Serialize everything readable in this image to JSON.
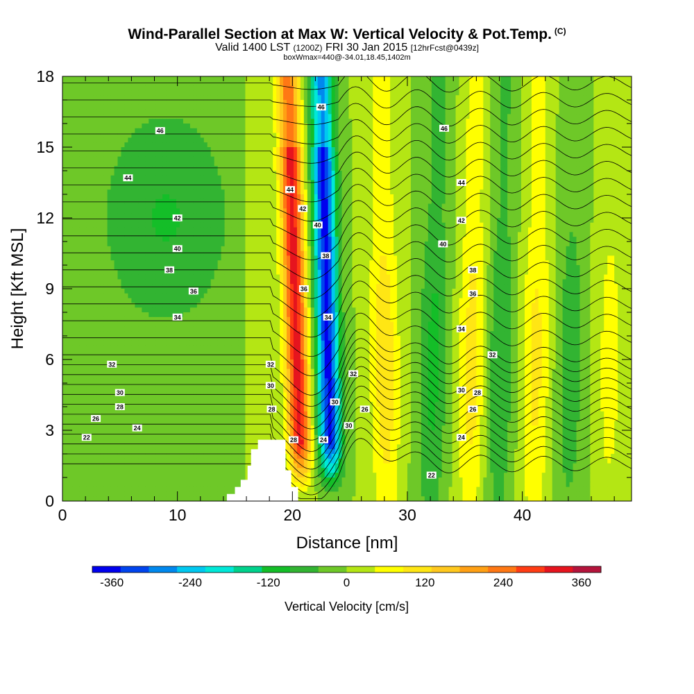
{
  "title": {
    "main": "Wind-Parallel Section at Max W: Vertical Velocity & Pot.Temp.",
    "copyright": "(C)",
    "valid_prefix": "Valid 1400 LST",
    "valid_utc": "(1200Z)",
    "valid_date": "FRI 30 Jan 2015",
    "forecast": "[12hrFcst@0439z]",
    "subtitle": "boxWmax=440@-34.01,18.45,1402m"
  },
  "chart_data": {
    "type": "heatmap",
    "xlabel": "Distance [nm]",
    "ylabel": "Height [Kft MSL]",
    "xlim": [
      0,
      49.5
    ],
    "ylim": [
      0,
      18
    ],
    "x_ticks": [
      0,
      10,
      20,
      30,
      40
    ],
    "y_ticks": [
      0,
      3,
      6,
      9,
      12,
      15,
      18
    ],
    "colorbar": {
      "label": "Vertical Velocity [cm/s]",
      "vmin": -390,
      "vmax": 390,
      "tick_values": [
        -360,
        -240,
        -120,
        0,
        120,
        240,
        360
      ],
      "tick_labels": [
        "-360",
        "-240",
        "-120",
        "0",
        "120",
        "240",
        "360"
      ],
      "colors": [
        "#0000ee",
        "#0044ee",
        "#0088ee",
        "#00c8f0",
        "#00e8d8",
        "#00d28c",
        "#14be28",
        "#32b432",
        "#6ec828",
        "#b4e614",
        "#ffff00",
        "#ffe614",
        "#ffc81e",
        "#ffa014",
        "#ff7814",
        "#ff3c14",
        "#e6141e",
        "#b4143c"
      ]
    },
    "velocity_features": [
      {
        "type": "updraft",
        "x_center": 20.8,
        "x_top": 19.6,
        "peak_cm_s": 320
      },
      {
        "type": "downdraft",
        "x_center": 23.4,
        "x_top": 22.5,
        "peak_cm_s": -360
      },
      {
        "type": "updraft",
        "x_center": 28.2,
        "x_top": 27.7,
        "peak_cm_s": 120
      },
      {
        "type": "downdraft",
        "x_center": 32.0,
        "x_top": 32.8,
        "peak_cm_s": -100
      },
      {
        "type": "updraft",
        "x_center": 35.5,
        "x_top": 36.0,
        "peak_cm_s": 110
      },
      {
        "type": "downdraft",
        "x_center": 37.8,
        "x_top": 38.5,
        "peak_cm_s": -90
      },
      {
        "type": "updraft",
        "x_center": 41.0,
        "x_top": 41.5,
        "peak_cm_s": 100
      },
      {
        "type": "downdraft",
        "x_center": 44.0,
        "x_top": 44.5,
        "peak_cm_s": -70
      },
      {
        "type": "updraft",
        "x_center": 47.5,
        "x_top": 47.8,
        "peak_cm_s": 60
      }
    ],
    "theta_contours_labeled": [
      22,
      24,
      26,
      28,
      30,
      32,
      34,
      36,
      38,
      40,
      42,
      44,
      46
    ],
    "theta_contour_interval": 1,
    "contour_labels": [
      {
        "value": "46",
        "x": 8.5,
        "y": 15.7
      },
      {
        "value": "44",
        "x": 5.7,
        "y": 13.7
      },
      {
        "value": "42",
        "x": 10.0,
        "y": 12.0
      },
      {
        "value": "40",
        "x": 10.0,
        "y": 10.7
      },
      {
        "value": "38",
        "x": 9.3,
        "y": 9.8
      },
      {
        "value": "36",
        "x": 11.4,
        "y": 8.9
      },
      {
        "value": "34",
        "x": 10.0,
        "y": 7.8
      },
      {
        "value": "32",
        "x": 4.3,
        "y": 5.8
      },
      {
        "value": "30",
        "x": 5.0,
        "y": 4.6
      },
      {
        "value": "28",
        "x": 5.0,
        "y": 4.0
      },
      {
        "value": "26",
        "x": 2.9,
        "y": 3.5
      },
      {
        "value": "24",
        "x": 6.5,
        "y": 3.1
      },
      {
        "value": "22",
        "x": 2.1,
        "y": 2.7
      },
      {
        "value": "46",
        "x": 22.5,
        "y": 16.7
      },
      {
        "value": "44",
        "x": 19.8,
        "y": 13.2
      },
      {
        "value": "42",
        "x": 20.9,
        "y": 12.4
      },
      {
        "value": "40",
        "x": 22.2,
        "y": 11.7
      },
      {
        "value": "38",
        "x": 22.9,
        "y": 10.4
      },
      {
        "value": "36",
        "x": 21.0,
        "y": 9.0
      },
      {
        "value": "34",
        "x": 23.1,
        "y": 7.8
      },
      {
        "value": "32",
        "x": 18.1,
        "y": 5.8
      },
      {
        "value": "30",
        "x": 18.1,
        "y": 4.9
      },
      {
        "value": "28",
        "x": 18.2,
        "y": 3.9
      },
      {
        "value": "28",
        "x": 20.1,
        "y": 2.6
      },
      {
        "value": "30",
        "x": 23.7,
        "y": 4.2
      },
      {
        "value": "32",
        "x": 25.3,
        "y": 5.4
      },
      {
        "value": "30",
        "x": 24.9,
        "y": 3.2
      },
      {
        "value": "24",
        "x": 22.7,
        "y": 2.6
      },
      {
        "value": "26",
        "x": 26.3,
        "y": 3.9
      },
      {
        "value": "46",
        "x": 33.2,
        "y": 15.8
      },
      {
        "value": "44",
        "x": 34.7,
        "y": 13.5
      },
      {
        "value": "42",
        "x": 34.7,
        "y": 11.9
      },
      {
        "value": "40",
        "x": 33.1,
        "y": 10.9
      },
      {
        "value": "38",
        "x": 35.7,
        "y": 9.8
      },
      {
        "value": "36",
        "x": 35.7,
        "y": 8.8
      },
      {
        "value": "34",
        "x": 34.7,
        "y": 7.3
      },
      {
        "value": "32",
        "x": 37.4,
        "y": 6.2
      },
      {
        "value": "30",
        "x": 34.7,
        "y": 4.7
      },
      {
        "value": "28",
        "x": 36.1,
        "y": 4.6
      },
      {
        "value": "26",
        "x": 35.7,
        "y": 3.9
      },
      {
        "value": "24",
        "x": 34.7,
        "y": 2.7
      },
      {
        "value": "22",
        "x": 32.1,
        "y": 1.1
      }
    ],
    "terrain": [
      [
        14.3,
        0
      ],
      [
        14.3,
        0.3
      ],
      [
        15.0,
        0.3
      ],
      [
        15.0,
        0.6
      ],
      [
        15.5,
        0.6
      ],
      [
        15.5,
        0.9
      ],
      [
        16.1,
        0.9
      ],
      [
        16.1,
        1.5
      ],
      [
        16.4,
        1.5
      ],
      [
        16.4,
        2.2
      ],
      [
        17.0,
        2.2
      ],
      [
        17.0,
        2.6
      ],
      [
        19.4,
        2.6
      ],
      [
        19.4,
        1.3
      ],
      [
        19.9,
        1.3
      ],
      [
        19.9,
        0.6
      ],
      [
        20.5,
        0.6
      ],
      [
        20.5,
        0
      ]
    ]
  }
}
